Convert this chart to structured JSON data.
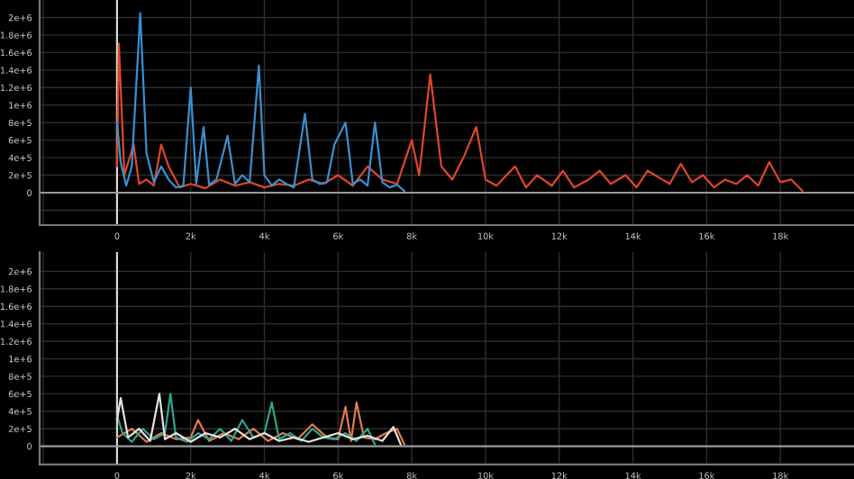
{
  "chart_data": [
    {
      "type": "line",
      "xlim": [
        -2100,
        20000
      ],
      "ylim": [
        -370000,
        2200000
      ],
      "xticks": [
        {
          "value": -2000,
          "label": null
        },
        0,
        {
          "value": 2000,
          "label": "2k"
        },
        {
          "value": 4000,
          "label": "4k"
        },
        {
          "value": 6000,
          "label": "6k"
        },
        {
          "value": 8000,
          "label": "8k"
        },
        {
          "value": 10000,
          "label": "10k"
        },
        {
          "value": 12000,
          "label": "12k"
        },
        {
          "value": 14000,
          "label": "14k"
        },
        {
          "value": 16000,
          "label": "16k"
        },
        {
          "value": 18000,
          "label": "18k"
        }
      ],
      "yticks": [
        {
          "value": -200000,
          "label": null
        },
        0,
        {
          "value": 200000,
          "label": "2e+5"
        },
        {
          "value": 400000,
          "label": "4e+5"
        },
        {
          "value": 600000,
          "label": "6e+5"
        },
        {
          "value": 800000,
          "label": "8e+5"
        },
        {
          "value": 1000000,
          "label": "1e+6"
        },
        {
          "value": 1200000,
          "label": "1.2e+6"
        },
        {
          "value": 1400000,
          "label": "1.4e+6"
        },
        {
          "value": 1600000,
          "label": "1.6e+6"
        },
        {
          "value": 1800000,
          "label": "1.8e+6"
        },
        {
          "value": 2000000,
          "label": "2e+6"
        }
      ],
      "grid": true,
      "ref_lines": [
        {
          "axis": "x",
          "value": 0,
          "color": "#d8d8d8"
        },
        {
          "axis": "y",
          "value": 0,
          "color": "#9a9a9a"
        }
      ],
      "series": [
        {
          "color": "#e0452a",
          "x": [
            0,
            50,
            200,
            450,
            600,
            800,
            1000,
            1200,
            1400,
            1700,
            2000,
            2400,
            2800,
            3200,
            3600,
            4000,
            4400,
            4800,
            5200,
            5600,
            6000,
            6400,
            6800,
            7200,
            7600,
            8000,
            8200,
            8500,
            8800,
            9100,
            9400,
            9750,
            10000,
            10300,
            10800,
            11100,
            11400,
            11800,
            12100,
            12400,
            12800,
            13100,
            13400,
            13800,
            14100,
            14400,
            14800,
            15000,
            15300,
            15600,
            15900,
            16200,
            16500,
            16800,
            17100,
            17400,
            17700,
            18000,
            18300,
            18600
          ],
          "values": [
            300000,
            1700000,
            200000,
            550000,
            100000,
            150000,
            80000,
            550000,
            300000,
            60000,
            100000,
            50000,
            150000,
            80000,
            120000,
            60000,
            100000,
            80000,
            150000,
            100000,
            200000,
            80000,
            300000,
            150000,
            100000,
            600000,
            200000,
            1350000,
            300000,
            150000,
            400000,
            750000,
            150000,
            80000,
            300000,
            60000,
            200000,
            80000,
            250000,
            60000,
            150000,
            250000,
            100000,
            200000,
            60000,
            250000,
            150000,
            100000,
            330000,
            120000,
            200000,
            60000,
            150000,
            100000,
            200000,
            80000,
            350000,
            120000,
            150000,
            20000
          ]
        },
        {
          "color": "#3a8fd0",
          "x": [
            0,
            100,
            250,
            400,
            630,
            800,
            1000,
            1200,
            1400,
            1600,
            1800,
            2000,
            2150,
            2350,
            2500,
            2700,
            3000,
            3200,
            3400,
            3600,
            3850,
            4000,
            4200,
            4400,
            4600,
            4800,
            5100,
            5300,
            5500,
            5700,
            5900,
            6200,
            6400,
            6600,
            6800,
            7000,
            7200,
            7400,
            7600,
            7800
          ],
          "values": [
            800000,
            350000,
            80000,
            300000,
            2050000,
            450000,
            120000,
            300000,
            150000,
            60000,
            80000,
            1200000,
            100000,
            750000,
            90000,
            150000,
            650000,
            100000,
            200000,
            120000,
            1450000,
            200000,
            80000,
            150000,
            100000,
            60000,
            900000,
            150000,
            100000,
            120000,
            550000,
            800000,
            100000,
            150000,
            80000,
            800000,
            120000,
            60000,
            90000,
            20000
          ]
        }
      ]
    },
    {
      "type": "line",
      "xlim": [
        -2100,
        20000
      ],
      "ylim": [
        -210000,
        2220000
      ],
      "xticks": [
        {
          "value": -2000,
          "label": null
        },
        0,
        {
          "value": 2000,
          "label": "2k"
        },
        {
          "value": 4000,
          "label": "4k"
        },
        {
          "value": 6000,
          "label": "6k"
        },
        {
          "value": 8000,
          "label": "8k"
        },
        {
          "value": 10000,
          "label": "10k"
        },
        {
          "value": 12000,
          "label": "12k"
        },
        {
          "value": 14000,
          "label": "14k"
        },
        {
          "value": 16000,
          "label": "16k"
        },
        {
          "value": 18000,
          "label": "18k"
        }
      ],
      "yticks": [
        {
          "value": -200000,
          "label": null
        },
        0,
        {
          "value": 200000,
          "label": "2e+5"
        },
        {
          "value": 400000,
          "label": "4e+5"
        },
        {
          "value": 600000,
          "label": "6e+5"
        },
        {
          "value": 800000,
          "label": "8e+5"
        },
        {
          "value": 1000000,
          "label": "1e+6"
        },
        {
          "value": 1200000,
          "label": "1.2e+6"
        },
        {
          "value": 1400000,
          "label": "1.4e+6"
        },
        {
          "value": 1600000,
          "label": "1.6e+6"
        },
        {
          "value": 1800000,
          "label": "1.8e+6"
        },
        {
          "value": 2000000,
          "label": "2e+6"
        }
      ],
      "grid": true,
      "ref_lines": [
        {
          "axis": "x",
          "value": 0,
          "color": "#d8d8d8"
        },
        {
          "axis": "y",
          "value": 0,
          "color": "#9a9a9a"
        }
      ],
      "series": [
        {
          "color": "#e07a50",
          "x": [
            0,
            400,
            800,
            1200,
            1600,
            2000,
            2200,
            2500,
            2900,
            3300,
            3700,
            4100,
            4500,
            4900,
            5300,
            5700,
            6000,
            6200,
            6350,
            6500,
            6700,
            7000,
            7300,
            7600,
            7800
          ],
          "values": [
            100000,
            200000,
            50000,
            150000,
            80000,
            100000,
            300000,
            60000,
            150000,
            80000,
            200000,
            60000,
            150000,
            80000,
            250000,
            100000,
            80000,
            450000,
            60000,
            500000,
            100000,
            80000,
            150000,
            200000,
            20000
          ]
        },
        {
          "color": "#2fa38f",
          "x": [
            0,
            150,
            400,
            700,
            1000,
            1300,
            1450,
            1600,
            1900,
            2200,
            2500,
            2800,
            3100,
            3400,
            3700,
            4000,
            4200,
            4400,
            4700,
            5000,
            5300,
            5600,
            5900,
            6200,
            6500,
            6800,
            7000
          ],
          "values": [
            350000,
            150000,
            50000,
            200000,
            80000,
            150000,
            600000,
            100000,
            50000,
            150000,
            80000,
            200000,
            60000,
            300000,
            100000,
            150000,
            500000,
            80000,
            150000,
            60000,
            200000,
            100000,
            80000,
            150000,
            60000,
            200000,
            20000
          ]
        },
        {
          "color": "#e8e0e0",
          "x": [
            0,
            100,
            300,
            600,
            900,
            1150,
            1300,
            1600,
            2000,
            2400,
            2800,
            3200,
            3600,
            4000,
            4400,
            4800,
            5200,
            5600,
            6000,
            6400,
            6800,
            7200,
            7500,
            7700
          ],
          "values": [
            300000,
            550000,
            100000,
            200000,
            60000,
            600000,
            80000,
            150000,
            50000,
            150000,
            100000,
            200000,
            80000,
            150000,
            60000,
            100000,
            50000,
            100000,
            150000,
            80000,
            120000,
            60000,
            220000,
            20000
          ]
        }
      ]
    }
  ]
}
